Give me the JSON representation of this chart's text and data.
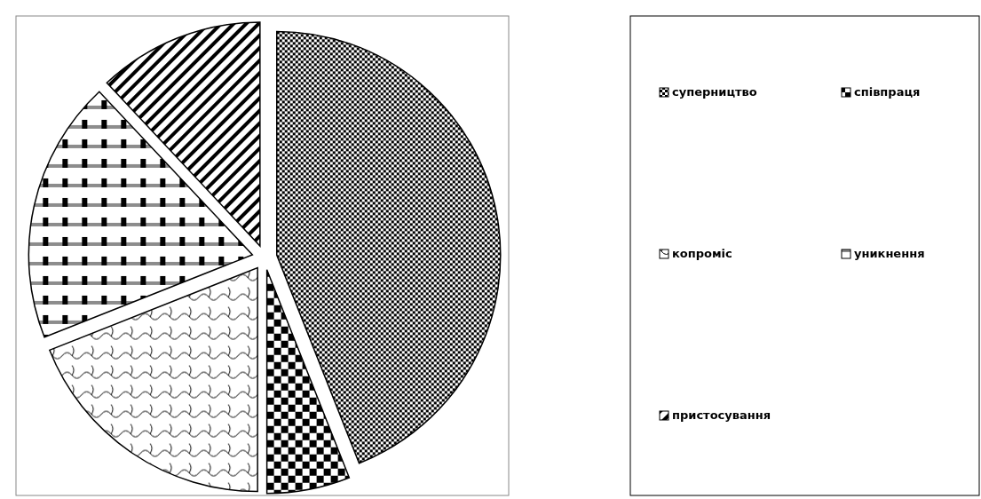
{
  "chart_data": {
    "type": "pie",
    "categories": [
      "суперництво",
      "співпраця",
      "копроміс",
      "уникнення",
      "пристосування"
    ],
    "values": [
      44,
      6,
      19,
      19,
      12
    ],
    "colors": [
      "#000000",
      "#000000",
      "#000000",
      "#000000",
      "#000000"
    ],
    "legend": "right"
  }
}
